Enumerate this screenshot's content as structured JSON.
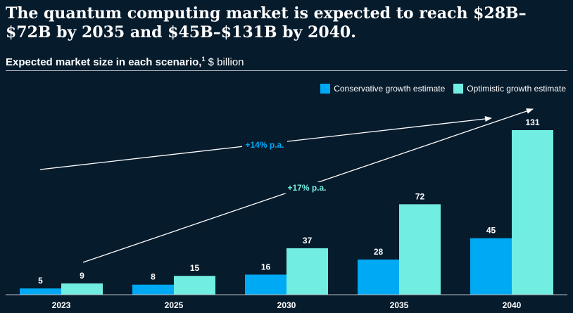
{
  "header": {
    "title": "The quantum computing market is expected to reach $28B–$72B by 2035 and $45B–$131B by 2040.",
    "subtitle_bold": "Expected market size in each scenario,",
    "subtitle_footnote": "1",
    "subtitle_unit": " $ billion"
  },
  "colors": {
    "background": "#061b2c",
    "conservative": "#00a9f4",
    "optimistic": "#71ede1",
    "growth_label_conservative": "#00a9f4",
    "growth_label_optimistic": "#71ede1"
  },
  "chart_data": {
    "type": "bar",
    "categories": [
      "2023",
      "2025",
      "2030",
      "2035",
      "2040"
    ],
    "series": [
      {
        "name": "Conservative growth estimate",
        "values": [
          5,
          8,
          16,
          28,
          45
        ]
      },
      {
        "name": "Optimistic growth estimate",
        "values": [
          9,
          15,
          37,
          72,
          131
        ]
      }
    ],
    "title": "The quantum computing market is expected to reach $28B–$72B by 2035 and $45B–$131B by 2040.",
    "ylabel": "$ billion",
    "ylim": [
      0,
      131
    ],
    "grid": false,
    "legend_position": "top-right",
    "annotations": [
      {
        "text": "+14% p.a.",
        "series": "Conservative growth estimate"
      },
      {
        "text": "+17% p.a.",
        "series": "Optimistic growth estimate"
      }
    ]
  }
}
